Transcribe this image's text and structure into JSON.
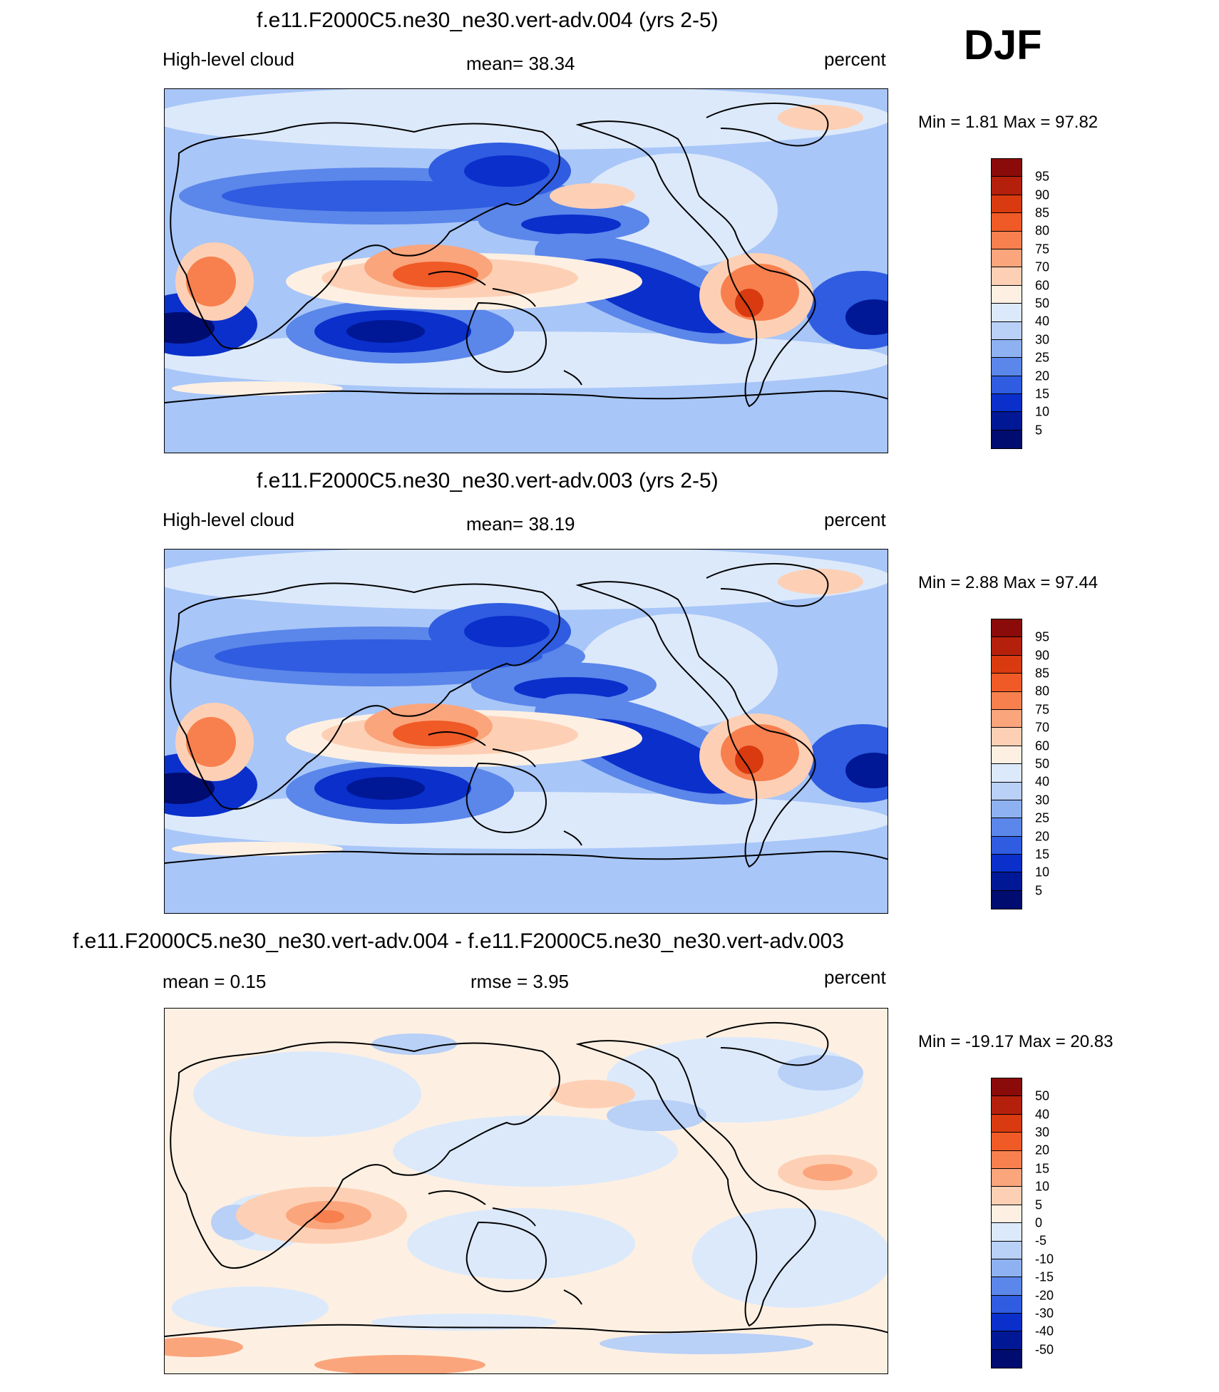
{
  "season": "DJF",
  "panels": [
    {
      "title": "f.e11.F2000C5.ne30_ne30.vert-adv.004 (yrs 2-5)",
      "left_label": "High-level cloud",
      "center_label": "mean=  38.34",
      "units": "percent",
      "minmax": "Min =    1.81 Max =  97.82",
      "colorbar_labels": [
        "95",
        "90",
        "85",
        "80",
        "75",
        "70",
        "60",
        "50",
        "40",
        "30",
        "25",
        "20",
        "15",
        "10",
        "5"
      ],
      "colorbar_colors": [
        "#8b0a0a",
        "#b5200d",
        "#d93a0f",
        "#f05a26",
        "#f8804e",
        "#fba57c",
        "#fdd0b5",
        "#fdf0e2",
        "#dce9fb",
        "#b9d0f7",
        "#8eb1f2",
        "#5b86ea",
        "#2f5ce0",
        "#0a2fcb",
        "#001896",
        "#000c70"
      ]
    },
    {
      "title": "f.e11.F2000C5.ne30_ne30.vert-adv.003 (yrs 2-5)",
      "left_label": "High-level cloud",
      "center_label": "mean=  38.19",
      "units": "percent",
      "minmax": "Min =    2.88 Max =  97.44",
      "colorbar_labels": [
        "95",
        "90",
        "85",
        "80",
        "75",
        "70",
        "60",
        "50",
        "40",
        "30",
        "25",
        "20",
        "15",
        "10",
        "5"
      ],
      "colorbar_colors": [
        "#8b0a0a",
        "#b5200d",
        "#d93a0f",
        "#f05a26",
        "#f8804e",
        "#fba57c",
        "#fdd0b5",
        "#fdf0e2",
        "#dce9fb",
        "#b9d0f7",
        "#8eb1f2",
        "#5b86ea",
        "#2f5ce0",
        "#0a2fcb",
        "#001896",
        "#000c70"
      ]
    },
    {
      "title": "f.e11.F2000C5.ne30_ne30.vert-adv.004 - f.e11.F2000C5.ne30_ne30.vert-adv.003",
      "left_label": "mean =    0.15",
      "center_label": "rmse =    3.95",
      "units": "percent",
      "minmax": "Min = -19.17 Max =  20.83",
      "colorbar_labels": [
        "50",
        "40",
        "30",
        "20",
        "15",
        "10",
        "5",
        "0",
        "-5",
        "-10",
        "-15",
        "-20",
        "-30",
        "-40",
        "-50"
      ],
      "colorbar_colors": [
        "#8b0a0a",
        "#b5200d",
        "#d93a0f",
        "#f05a26",
        "#f8804e",
        "#fba57c",
        "#fdd0b5",
        "#fdf0e2",
        "#dce9fb",
        "#b9d0f7",
        "#8eb1f2",
        "#5b86ea",
        "#2f5ce0",
        "#0a2fcb",
        "#001896",
        "#000c70"
      ]
    }
  ]
}
